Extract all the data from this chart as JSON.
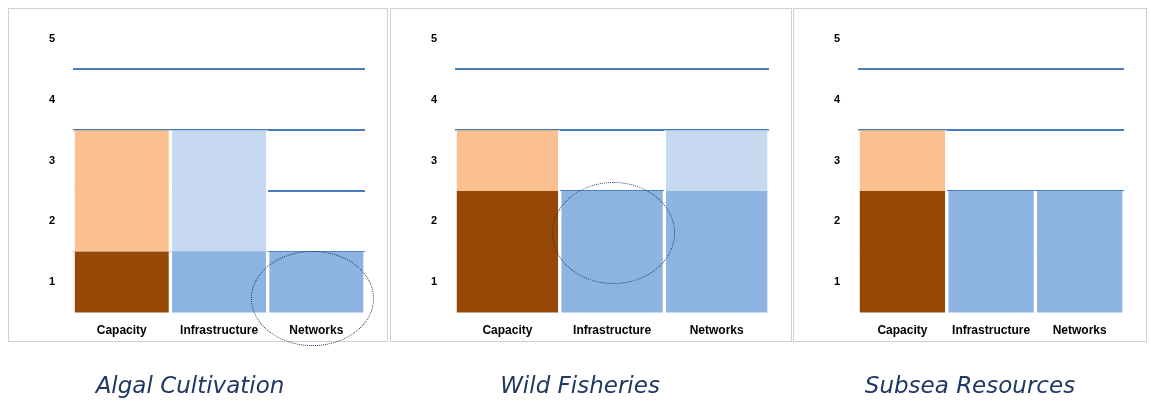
{
  "chart_data": [
    {
      "type": "bar",
      "title": "Algal Cultivation",
      "categories": [
        "Capacity",
        "Infrastructure",
        "Networks"
      ],
      "stacked": true,
      "ylim": [
        0,
        4.5
      ],
      "grid": "y",
      "yticks": [
        {
          "value": 0.5,
          "label": "1"
        },
        {
          "value": 1,
          "label": null
        },
        {
          "value": 1.5,
          "label": "2"
        },
        {
          "value": 2,
          "label": null
        },
        {
          "value": 2.5,
          "label": "3"
        },
        {
          "value": 3,
          "label": null
        },
        {
          "value": 3.5,
          "label": "4"
        },
        {
          "value": 4,
          "label": null
        },
        {
          "value": 4.5,
          "label": "5"
        }
      ],
      "series": [
        {
          "values": [
            1,
            1,
            1
          ],
          "colors": [
            "#974706",
            "#8db3e2",
            "#8db3e2"
          ]
        },
        {
          "values": [
            2,
            2,
            null
          ],
          "colors": [
            "#fac090",
            "#c6d9f0",
            "#c6d9f0"
          ]
        }
      ]
    },
    {
      "type": "bar",
      "title": "Wild Fisheries",
      "categories": [
        "Capacity",
        "Infrastructure",
        "Networks"
      ],
      "stacked": true,
      "ylim": [
        0,
        4.5
      ],
      "grid": "y",
      "yticks": [
        {
          "value": 0.5,
          "label": "1"
        },
        {
          "value": 1,
          "label": null
        },
        {
          "value": 1.5,
          "label": "2"
        },
        {
          "value": 2,
          "label": null
        },
        {
          "value": 2.5,
          "label": "3"
        },
        {
          "value": 3,
          "label": null
        },
        {
          "value": 3.5,
          "label": "4"
        },
        {
          "value": 4,
          "label": null
        },
        {
          "value": 4.5,
          "label": "5"
        }
      ],
      "series": [
        {
          "values": [
            2,
            2,
            2
          ],
          "colors": [
            "#974706",
            "#8db3e2",
            "#8db3e2"
          ]
        },
        {
          "values": [
            1,
            null,
            1
          ],
          "colors": [
            "#fac090",
            "#c6d9f0",
            "#c6d9f0"
          ]
        }
      ]
    },
    {
      "type": "bar",
      "title": "Subsea Resources",
      "categories": [
        "Capacity",
        "Infrastructure",
        "Networks"
      ],
      "stacked": true,
      "ylim": [
        0,
        4.5
      ],
      "grid": "y",
      "yticks": [
        {
          "value": 0.5,
          "label": "1"
        },
        {
          "value": 1,
          "label": null
        },
        {
          "value": 1.5,
          "label": "2"
        },
        {
          "value": 2,
          "label": null
        },
        {
          "value": 2.5,
          "label": "3"
        },
        {
          "value": 3,
          "label": null
        },
        {
          "value": 3.5,
          "label": "4"
        },
        {
          "value": 4,
          "label": null
        },
        {
          "value": 4.5,
          "label": "5"
        }
      ],
      "series": [
        {
          "values": [
            2,
            2,
            2
          ],
          "colors": [
            "#974706",
            "#8db3e2",
            "#8db3e2"
          ]
        },
        {
          "values": [
            1,
            null,
            null
          ],
          "colors": [
            "#fac090",
            "#c6d9f0",
            "#c6d9f0"
          ]
        }
      ]
    }
  ]
}
